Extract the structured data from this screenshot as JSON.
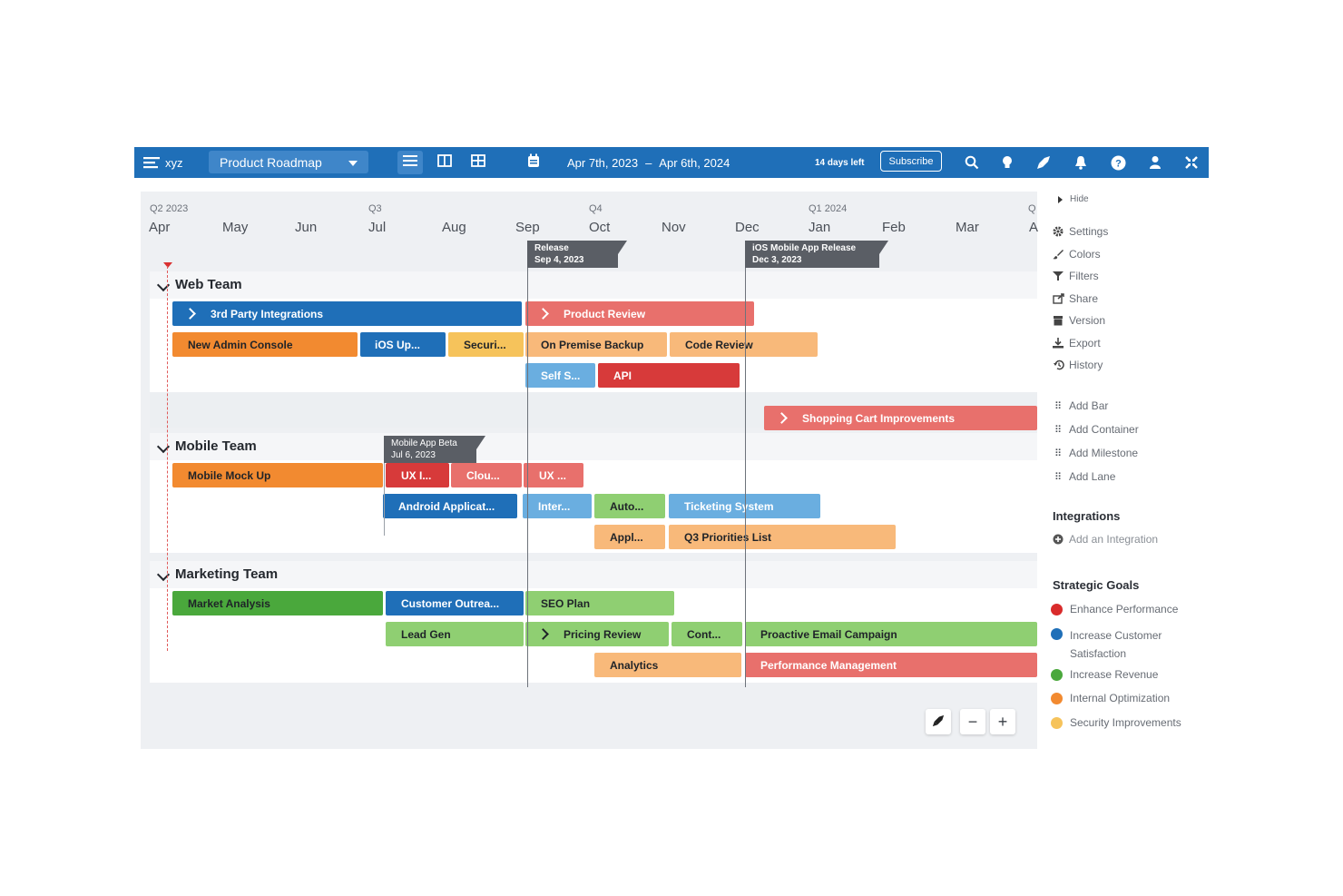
{
  "topbar": {
    "logo_text": "xyz",
    "roadmap_name": "Product Roadmap",
    "date_from": "Apr 7th, 2023",
    "date_sep": "–",
    "date_to": "Apr 6th, 2024",
    "trial": "14 days left",
    "subscribe": "Subscribe",
    "icons": [
      "search-icon",
      "lightbulb-icon",
      "rocket-icon",
      "bell-icon",
      "help-icon",
      "user-icon",
      "collapse-icon"
    ]
  },
  "timeline": {
    "quarters": [
      "Q2 2023",
      "Q3",
      "Q4",
      "Q1 2024",
      "Q"
    ],
    "months": [
      "Apr",
      "May",
      "Jun",
      "Jul",
      "Aug",
      "Sep",
      "Oct",
      "Nov",
      "Dec",
      "Jan",
      "Feb",
      "Mar",
      "A"
    ],
    "milestones": [
      {
        "name": "Release",
        "date": "Sep 4, 2023"
      },
      {
        "name": "iOS Mobile App Release",
        "date": "Dec 3, 2023"
      },
      {
        "name": "Mobile App Beta",
        "date": "Jul 6, 2023"
      }
    ]
  },
  "teams": [
    {
      "name": "Web Team",
      "bars": [
        "3rd Party Integrations",
        "Product Review",
        "New Admin Console",
        "iOS Up...",
        "Securi...",
        "On Premise Backup",
        "Code Review",
        "Self S...",
        "API",
        "Shopping Cart Improvements"
      ]
    },
    {
      "name": "Mobile Team",
      "bars": [
        "Mobile Mock Up",
        "UX I...",
        "Clou...",
        "UX ...",
        "Android Applicat...",
        "Inter...",
        "Auto...",
        "Ticketing System",
        "Appl...",
        "Q3 Priorities List"
      ]
    },
    {
      "name": "Marketing Team",
      "bars": [
        "Market Analysis",
        "Customer Outrea...",
        "SEO Plan",
        "Lead Gen",
        "Pricing Review",
        "Cont...",
        "Proactive Email Campaign",
        "Analytics",
        "Performance Management"
      ]
    }
  ],
  "sidebar": {
    "hide": "Hide",
    "menu": [
      "Settings",
      "Colors",
      "Filters",
      "Share",
      "Version",
      "Export",
      "History"
    ],
    "add": [
      "Add Bar",
      "Add Container",
      "Add Milestone",
      "Add Lane"
    ],
    "integrations_title": "Integrations",
    "add_integration": "Add an Integration",
    "goals_title": "Strategic Goals",
    "goals": [
      {
        "label": "Enhance Performance",
        "color": "#d92b2b"
      },
      {
        "label": "Increase Customer",
        "label2": "Satisfaction",
        "color": "#1f6fb8"
      },
      {
        "label": "Increase Revenue",
        "color": "#4aa83c"
      },
      {
        "label": "Internal Optimization",
        "color": "#f28a30"
      },
      {
        "label": "Security Improvements",
        "color": "#f6c35b"
      }
    ]
  },
  "zoom": {
    "minus": "−",
    "plus": "+"
  }
}
